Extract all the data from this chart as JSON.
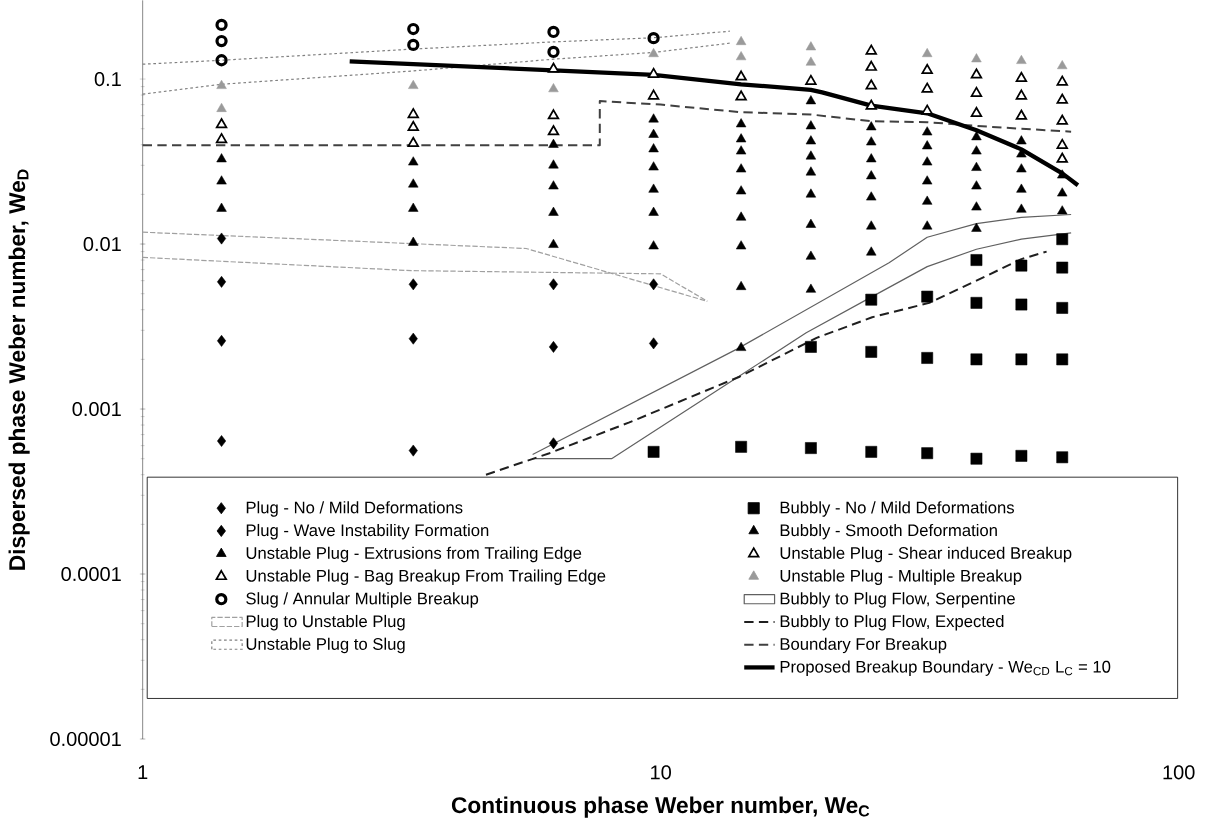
{
  "chart_data": {
    "type": "scatter",
    "xlabel": "Continuous phase Weber number, We$_{C}$",
    "ylabel": "Dispersed phase Weber number, We$_{D}$",
    "log": "xy",
    "xlim": [
      1,
      100
    ],
    "ylim": [
      1e-05,
      0.3
    ],
    "xticks": [
      1,
      10,
      100
    ],
    "yticks": [
      {
        "value": 1e-05,
        "label": "0.00001"
      },
      {
        "value": 0.0001,
        "label": "0.0001"
      },
      {
        "value": 0.001,
        "label": "0.001"
      },
      {
        "value": 0.01,
        "label": "0.01"
      },
      {
        "value": 0.1,
        "label": "0.1"
      }
    ],
    "legend": "bottom",
    "series": [
      {
        "name": "Plug - No / Mild Deformations",
        "marker": "diamond",
        "color": "#000000",
        "x": [
          1.42,
          1.42,
          1.42,
          3.33,
          3.33,
          3.33,
          6.21,
          6.21,
          6.21,
          9.69,
          9.69
        ],
        "values": [
          0.0059,
          0.00259,
          0.00064,
          0.0057,
          0.00267,
          0.00056,
          0.0057,
          0.00238,
          0.00062,
          0.0057,
          0.0025
        ]
      },
      {
        "name": "Plug - Wave Instability Formation",
        "marker": "diamond",
        "color": "#000000",
        "x": [
          1.42
        ],
        "values": [
          0.0108
        ]
      },
      {
        "name": "Unstable Plug - Extrusions from Trailing Edge",
        "marker": "triangle",
        "color": "#000000",
        "x": [
          1.42,
          1.42,
          1.42,
          3.33,
          3.33,
          3.33,
          3.33,
          6.21,
          6.21,
          6.21,
          6.21,
          6.21,
          9.69,
          9.69,
          9.69,
          9.69,
          9.69,
          9.69,
          9.69,
          14.3,
          14.3,
          14.3,
          14.3,
          14.3,
          14.3,
          14.3,
          14.3,
          14.3,
          19.5,
          19.5,
          19.5,
          19.5,
          19.5,
          19.5,
          19.5,
          19.5,
          19.5,
          25.5,
          25.5,
          25.5,
          25.5,
          25.5,
          25.5,
          25.5,
          32.7,
          32.7,
          32.7,
          32.7,
          32.7,
          32.7,
          40.7,
          40.7,
          40.7,
          40.7,
          40.7,
          40.7,
          49.7,
          49.7,
          49.7,
          49.7,
          49.7,
          59.6,
          59.6,
          59.6
        ],
        "values": [
          0.0327,
          0.024,
          0.0164,
          0.0313,
          0.023,
          0.0164,
          0.0102,
          0.04,
          0.03,
          0.0224,
          0.0155,
          0.0099,
          0.057,
          0.046,
          0.0376,
          0.0292,
          0.0214,
          0.0155,
          0.0097,
          0.0533,
          0.0432,
          0.0365,
          0.0284,
          0.0209,
          0.0145,
          0.0097,
          0.0055,
          0.00235,
          0.0735,
          0.0518,
          0.042,
          0.034,
          0.0272,
          0.02,
          0.0131,
          0.0084,
          0.0053,
          0.0511,
          0.0414,
          0.0327,
          0.0258,
          0.0192,
          0.0128,
          0.0089,
          0.0476,
          0.0392,
          0.0313,
          0.024,
          0.0181,
          0.0128,
          0.0445,
          0.0365,
          0.029,
          0.0224,
          0.0167,
          0.0124,
          0.042,
          0.035,
          0.0284,
          0.0214,
          0.0162,
          0.0261,
          0.0203,
          0.0158
        ]
      },
      {
        "name": "Unstable Plug - Bag Breakup From Trailing Edge",
        "marker": "triangle",
        "color": "#ffffff",
        "x": [
          1.42,
          1.42,
          3.33,
          3.33,
          3.33,
          6.21,
          6.21,
          6.21
        ],
        "values": [
          0.053,
          0.043,
          0.061,
          0.051,
          0.0408,
          0.115,
          0.06,
          0.048
        ]
      },
      {
        "name": "Slug / Annular Multiple Breakup",
        "marker": "circle",
        "color": "#000000",
        "x": [
          1.42,
          1.42,
          1.42,
          3.33,
          3.33,
          6.21,
          6.21,
          9.69
        ],
        "values": [
          0.213,
          0.17,
          0.13,
          0.201,
          0.161,
          0.193,
          0.146,
          0.177
        ]
      },
      {
        "name": "Plug to Unstable Plug",
        "type": "line",
        "line_style": "dashed",
        "color": "#a0a0a0",
        "x": [
          1,
          5.5,
          12.3
        ],
        "values": [
          0.0118,
          0.0094,
          0.0045
        ]
      },
      {
        "type": "line",
        "line_style": "dashed",
        "color": "#a0a0a0",
        "x": [
          1,
          3.3,
          10,
          12.3
        ],
        "values": [
          0.0083,
          0.0069,
          0.0066,
          0.0045
        ]
      },
      {
        "name": "Unstable Plug to Slug",
        "type": "line",
        "line_style": "dotted",
        "color": "#808080",
        "x": [
          1,
          1.42,
          3.33,
          6.21,
          9.69,
          13.6
        ],
        "values": [
          0.123,
          0.13,
          0.152,
          0.168,
          0.178,
          0.195
        ]
      },
      {
        "type": "line",
        "line_style": "dotted",
        "color": "#808080",
        "x": [
          1,
          1.42,
          3.33,
          6.21,
          9.69,
          13.6
        ],
        "values": [
          0.081,
          0.093,
          0.112,
          0.132,
          0.145,
          0.165
        ]
      },
      {
        "name": "Bubbly - No / Mild Deformations",
        "marker": "square",
        "color": "#000000",
        "x": [
          9.69,
          14.3,
          19.5,
          19.5,
          25.5,
          25.5,
          25.5,
          32.7,
          32.7,
          32.7,
          40.7,
          40.7,
          40.7,
          40.7,
          49.7,
          49.7,
          49.7,
          49.7,
          59.6,
          59.6,
          59.6,
          59.6,
          59.6
        ],
        "values": [
          0.00055,
          0.00059,
          0.00238,
          0.00058,
          0.0046,
          0.00222,
          0.00055,
          0.0048,
          0.00204,
          0.00054,
          0.008,
          0.0044,
          0.002,
          0.0005,
          0.0074,
          0.0043,
          0.002,
          0.00052,
          0.0107,
          0.0072,
          0.0041,
          0.002,
          0.00051
        ]
      },
      {
        "name": "Bubbly - Smooth Deformation",
        "marker": "triangle",
        "color": "#000000"
      },
      {
        "name": "Unstable Plug - Shear induced Breakup",
        "marker": "triangle",
        "color": "#ffffff",
        "x": [
          9.69,
          9.69,
          14.3,
          14.3,
          19.5,
          25.5,
          25.5,
          25.5,
          25.5,
          32.7,
          32.7,
          32.7,
          40.7,
          40.7,
          40.7,
          49.7,
          49.7,
          49.7,
          59.6,
          59.6,
          59.6,
          59.6,
          59.6
        ],
        "values": [
          0.107,
          0.079,
          0.103,
          0.078,
          0.097,
          0.148,
          0.118,
          0.091,
          0.0686,
          0.113,
          0.087,
          0.064,
          0.106,
          0.082,
          0.062,
          0.101,
          0.079,
          0.0596,
          0.096,
          0.0746,
          0.0556,
          0.0397,
          0.0327
        ]
      },
      {
        "name": "Unstable Plug - Multiple Breakup",
        "marker": "triangle",
        "color": "#9a9a9a",
        "x": [
          1.42,
          1.42,
          3.33,
          6.21,
          9.69,
          14.3,
          14.3,
          19.5,
          19.5,
          32.7,
          40.7,
          49.7,
          59.6
        ],
        "values": [
          0.091,
          0.066,
          0.091,
          0.087,
          0.142,
          0.168,
          0.136,
          0.156,
          0.126,
          0.142,
          0.132,
          0.129,
          0.12
        ]
      },
      {
        "name": "Bubbly to Plug Flow, Serpentine",
        "type": "line",
        "line_style": "solid",
        "color": "#606060",
        "x": [
          5.66,
          14,
          27.6,
          32.7,
          40.7,
          49.7,
          62
        ],
        "values": [
          0.00053,
          0.0023,
          0.0077,
          0.011,
          0.0133,
          0.0145,
          0.0151
        ]
      },
      {
        "type": "line",
        "line_style": "solid",
        "color": "#606060",
        "x": [
          5.66,
          8.04,
          14,
          19.1,
          25.6,
          32.7,
          40.7,
          49.7,
          62
        ],
        "values": [
          0.0005,
          0.0005,
          0.00154,
          0.0029,
          0.0048,
          0.0073,
          0.0093,
          0.0107,
          0.0117
        ]
      },
      {
        "name": "Bubbly to Plug Flow, Expected",
        "type": "line",
        "line_style": "dashed",
        "color": "#1f1f1f",
        "x": [
          4.6,
          6.1,
          8.7,
          14.2,
          20,
          25.6,
          33,
          40.7,
          49.7,
          55.6
        ],
        "values": [
          0.0004,
          0.00054,
          0.00083,
          0.00157,
          0.0027,
          0.0036,
          0.0044,
          0.006,
          0.0081,
          0.009
        ]
      },
      {
        "name": "Boundary For Breakup",
        "type": "line",
        "line_style": "dashed",
        "color": "#404040",
        "x": [
          1,
          7.63,
          7.63,
          10,
          14.3,
          19.5,
          25.5,
          32.7,
          40.7,
          49.7,
          62
        ],
        "values": [
          0.0397,
          0.0397,
          0.0735,
          0.07,
          0.063,
          0.061,
          0.0555,
          0.0548,
          0.052,
          0.05,
          0.048
        ]
      },
      {
        "name": "Proposed Breakup Boundary - We$_{CD}$ L$_{C}$ = 10",
        "type": "line",
        "line_style": "solid",
        "color": "#000000",
        "x": [
          2.51,
          3.33,
          6.21,
          9.69,
          14.3,
          19.5,
          20.5,
          25.5,
          32.7,
          40.7,
          49.7,
          59.6,
          63.9
        ],
        "values": [
          0.128,
          0.123,
          0.113,
          0.106,
          0.093,
          0.086,
          0.083,
          0.069,
          0.062,
          0.049,
          0.0375,
          0.0268,
          0.0227
        ]
      }
    ]
  }
}
